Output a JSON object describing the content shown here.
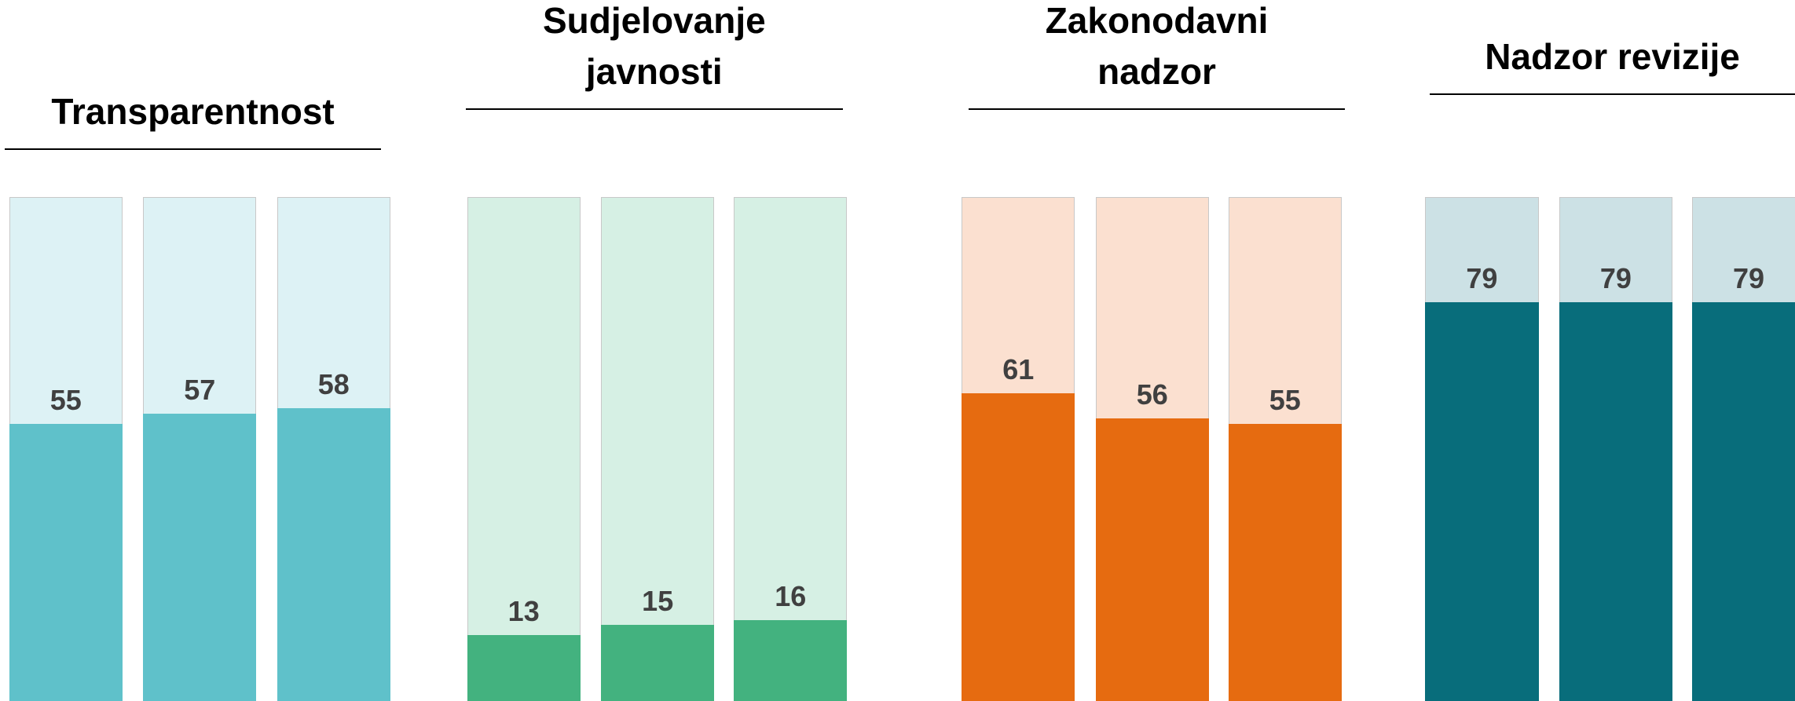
{
  "chart_data": [
    {
      "type": "bar",
      "title": [
        "Transparentnost"
      ],
      "values": [
        55,
        57,
        58
      ],
      "color": "#5fc1ca",
      "background_color": "#ddf2f5",
      "ylim": [
        0,
        100
      ]
    },
    {
      "type": "bar",
      "title": [
        "Sudjelovanje",
        "javnosti"
      ],
      "values": [
        13,
        15,
        16
      ],
      "color": "#43b27f",
      "background_color": "#d6f0e4",
      "ylim": [
        0,
        100
      ]
    },
    {
      "type": "bar",
      "title": [
        "Zakonodavni",
        "nadzor"
      ],
      "values": [
        61,
        56,
        55
      ],
      "color": "#e66b10",
      "background_color": "#fbe0d0",
      "ylim": [
        0,
        100
      ]
    },
    {
      "type": "bar",
      "title": [
        "Nadzor revizije"
      ],
      "values": [
        79,
        79,
        79
      ],
      "color": "#086d7b",
      "background_color": "#cce1e5",
      "ylim": [
        0,
        100
      ]
    }
  ]
}
